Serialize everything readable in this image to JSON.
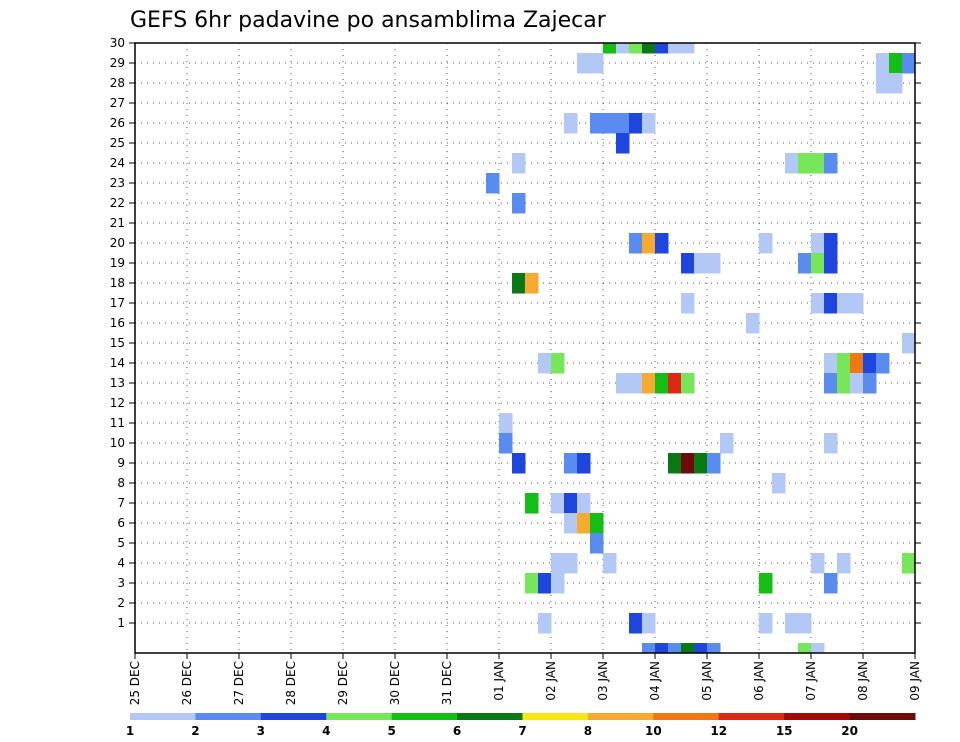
{
  "chart_data": {
    "type": "heatmap",
    "title": "GEFS 6hr padavine po ansamblima Zajecar",
    "xlabel": "",
    "ylabel": "",
    "x_tick_labels": [
      "25 DEC",
      "26 DEC",
      "27 DEC",
      "28 DEC",
      "29 DEC",
      "30 DEC",
      "31 DEC",
      "01 JAN",
      "02 JAN",
      "03 JAN",
      "04 JAN",
      "05 JAN",
      "06 JAN",
      "07 JAN",
      "08 JAN",
      "09 JAN"
    ],
    "y_tick_labels": [
      "1",
      "2",
      "3",
      "4",
      "5",
      "6",
      "7",
      "8",
      "9",
      "10",
      "11",
      "12",
      "13",
      "14",
      "15",
      "16",
      "17",
      "18",
      "19",
      "20",
      "21",
      "22",
      "23",
      "24",
      "25",
      "26",
      "27",
      "28",
      "29",
      "30"
    ],
    "x_range_days": [
      0,
      15
    ],
    "y_range": [
      0,
      30
    ],
    "grid": "dotted",
    "legend": {
      "position": "bottom",
      "thresholds": [
        "1",
        "2",
        "3",
        "4",
        "5",
        "6",
        "7",
        "8",
        "10",
        "12",
        "15",
        "20"
      ],
      "colors": [
        "#b4c8f5",
        "#5a8cf0",
        "#1e46dc",
        "#78e65a",
        "#14be14",
        "#0a7814",
        "#f5e614",
        "#f5aa32",
        "#f07814",
        "#dc2814",
        "#a00a0a",
        "#6e0a0a"
      ]
    },
    "cells": [
      {
        "m": 30,
        "d": 9.0,
        "v": 5
      },
      {
        "m": 30,
        "d": 9.25,
        "v": 1
      },
      {
        "m": 30,
        "d": 9.5,
        "v": 4
      },
      {
        "m": 30,
        "d": 9.75,
        "v": 6
      },
      {
        "m": 30,
        "d": 10.0,
        "v": 3
      },
      {
        "m": 30,
        "d": 10.25,
        "v": 1
      },
      {
        "m": 30,
        "d": 10.5,
        "v": 1
      },
      {
        "m": 29,
        "d": 8.5,
        "v": 1
      },
      {
        "m": 29,
        "d": 8.75,
        "v": 1
      },
      {
        "m": 29,
        "d": 14.25,
        "v": 1
      },
      {
        "m": 29,
        "d": 14.5,
        "v": 5
      },
      {
        "m": 29,
        "d": 14.75,
        "v": 2
      },
      {
        "m": 28,
        "d": 14.25,
        "v": 1
      },
      {
        "m": 28,
        "d": 14.5,
        "v": 1
      },
      {
        "m": 26,
        "d": 8.25,
        "v": 1
      },
      {
        "m": 26,
        "d": 8.75,
        "v": 2
      },
      {
        "m": 26,
        "d": 9.0,
        "v": 2
      },
      {
        "m": 26,
        "d": 9.25,
        "v": 2
      },
      {
        "m": 26,
        "d": 9.5,
        "v": 3
      },
      {
        "m": 26,
        "d": 9.75,
        "v": 1
      },
      {
        "m": 25,
        "d": 9.25,
        "v": 3
      },
      {
        "m": 24,
        "d": 7.25,
        "v": 1
      },
      {
        "m": 24,
        "d": 12.5,
        "v": 1
      },
      {
        "m": 24,
        "d": 12.75,
        "v": 4
      },
      {
        "m": 24,
        "d": 13.0,
        "v": 4
      },
      {
        "m": 24,
        "d": 13.25,
        "v": 2
      },
      {
        "m": 23,
        "d": 6.75,
        "v": 2
      },
      {
        "m": 22,
        "d": 7.25,
        "v": 2
      },
      {
        "m": 20,
        "d": 9.5,
        "v": 2
      },
      {
        "m": 20,
        "d": 9.75,
        "v": 9
      },
      {
        "m": 20,
        "d": 10.0,
        "v": 3
      },
      {
        "m": 20,
        "d": 12.0,
        "v": 1
      },
      {
        "m": 20,
        "d": 13.0,
        "v": 1
      },
      {
        "m": 20,
        "d": 13.25,
        "v": 3
      },
      {
        "m": 19,
        "d": 10.5,
        "v": 3
      },
      {
        "m": 19,
        "d": 10.75,
        "v": 1
      },
      {
        "m": 19,
        "d": 11.0,
        "v": 1
      },
      {
        "m": 19,
        "d": 12.75,
        "v": 2
      },
      {
        "m": 19,
        "d": 13.0,
        "v": 4
      },
      {
        "m": 19,
        "d": 13.25,
        "v": 3
      },
      {
        "m": 18,
        "d": 7.25,
        "v": 6
      },
      {
        "m": 18,
        "d": 7.5,
        "v": 9
      },
      {
        "m": 17,
        "d": 10.5,
        "v": 1
      },
      {
        "m": 17,
        "d": 13.0,
        "v": 1
      },
      {
        "m": 17,
        "d": 13.25,
        "v": 3
      },
      {
        "m": 17,
        "d": 13.5,
        "v": 1
      },
      {
        "m": 17,
        "d": 13.75,
        "v": 1
      },
      {
        "m": 16,
        "d": 11.75,
        "v": 1
      },
      {
        "m": 15,
        "d": 14.75,
        "v": 1
      },
      {
        "m": 14,
        "d": 7.75,
        "v": 1
      },
      {
        "m": 14,
        "d": 8.0,
        "v": 4
      },
      {
        "m": 14,
        "d": 13.25,
        "v": 1
      },
      {
        "m": 14,
        "d": 13.5,
        "v": 4
      },
      {
        "m": 14,
        "d": 13.75,
        "v": 10
      },
      {
        "m": 14,
        "d": 14.0,
        "v": 3
      },
      {
        "m": 14,
        "d": 14.25,
        "v": 2
      },
      {
        "m": 13,
        "d": 9.25,
        "v": 1
      },
      {
        "m": 13,
        "d": 9.5,
        "v": 1
      },
      {
        "m": 13,
        "d": 9.75,
        "v": 9
      },
      {
        "m": 13,
        "d": 10.0,
        "v": 5
      },
      {
        "m": 13,
        "d": 10.25,
        "v": 12
      },
      {
        "m": 13,
        "d": 10.5,
        "v": 4
      },
      {
        "m": 13,
        "d": 13.25,
        "v": 2
      },
      {
        "m": 13,
        "d": 13.5,
        "v": 4
      },
      {
        "m": 13,
        "d": 13.75,
        "v": 1
      },
      {
        "m": 13,
        "d": 14.0,
        "v": 2
      },
      {
        "m": 11,
        "d": 7.0,
        "v": 1
      },
      {
        "m": 10,
        "d": 7.0,
        "v": 2
      },
      {
        "m": 10,
        "d": 11.25,
        "v": 1
      },
      {
        "m": 10,
        "d": 13.25,
        "v": 1
      },
      {
        "m": 9,
        "d": 7.25,
        "v": 3
      },
      {
        "m": 9,
        "d": 8.25,
        "v": 2
      },
      {
        "m": 9,
        "d": 8.5,
        "v": 3
      },
      {
        "m": 9,
        "d": 10.25,
        "v": 6
      },
      {
        "m": 9,
        "d": 10.5,
        "v": 20
      },
      {
        "m": 9,
        "d": 10.75,
        "v": 6
      },
      {
        "m": 9,
        "d": 11.0,
        "v": 2
      },
      {
        "m": 8,
        "d": 12.25,
        "v": 1
      },
      {
        "m": 7,
        "d": 7.5,
        "v": 5
      },
      {
        "m": 7,
        "d": 8.0,
        "v": 1
      },
      {
        "m": 7,
        "d": 8.25,
        "v": 3
      },
      {
        "m": 7,
        "d": 8.5,
        "v": 1
      },
      {
        "m": 6,
        "d": 8.25,
        "v": 1
      },
      {
        "m": 6,
        "d": 8.5,
        "v": 9
      },
      {
        "m": 6,
        "d": 8.75,
        "v": 5
      },
      {
        "m": 5,
        "d": 8.75,
        "v": 2
      },
      {
        "m": 4,
        "d": 8.0,
        "v": 1
      },
      {
        "m": 4,
        "d": 8.25,
        "v": 1
      },
      {
        "m": 4,
        "d": 9.0,
        "v": 1
      },
      {
        "m": 4,
        "d": 13.0,
        "v": 1
      },
      {
        "m": 4,
        "d": 13.5,
        "v": 1
      },
      {
        "m": 4,
        "d": 14.75,
        "v": 4
      },
      {
        "m": 3,
        "d": 7.5,
        "v": 4
      },
      {
        "m": 3,
        "d": 7.75,
        "v": 3
      },
      {
        "m": 3,
        "d": 8.0,
        "v": 1
      },
      {
        "m": 3,
        "d": 12.0,
        "v": 5
      },
      {
        "m": 3,
        "d": 13.25,
        "v": 2
      },
      {
        "m": 1,
        "d": 7.75,
        "v": 1
      },
      {
        "m": 1,
        "d": 9.5,
        "v": 3
      },
      {
        "m": 1,
        "d": 9.75,
        "v": 1
      },
      {
        "m": 1,
        "d": 12.0,
        "v": 1
      },
      {
        "m": 1,
        "d": 12.5,
        "v": 1
      },
      {
        "m": 1,
        "d": 12.75,
        "v": 1
      },
      {
        "m": 0,
        "d": 9.75,
        "v": 2
      },
      {
        "m": 0,
        "d": 10.0,
        "v": 3
      },
      {
        "m": 0,
        "d": 10.25,
        "v": 2
      },
      {
        "m": 0,
        "d": 10.5,
        "v": 6
      },
      {
        "m": 0,
        "d": 10.75,
        "v": 3
      },
      {
        "m": 0,
        "d": 11.0,
        "v": 2
      },
      {
        "m": 0,
        "d": 12.75,
        "v": 4
      },
      {
        "m": 0,
        "d": 13.0,
        "v": 1
      }
    ]
  }
}
